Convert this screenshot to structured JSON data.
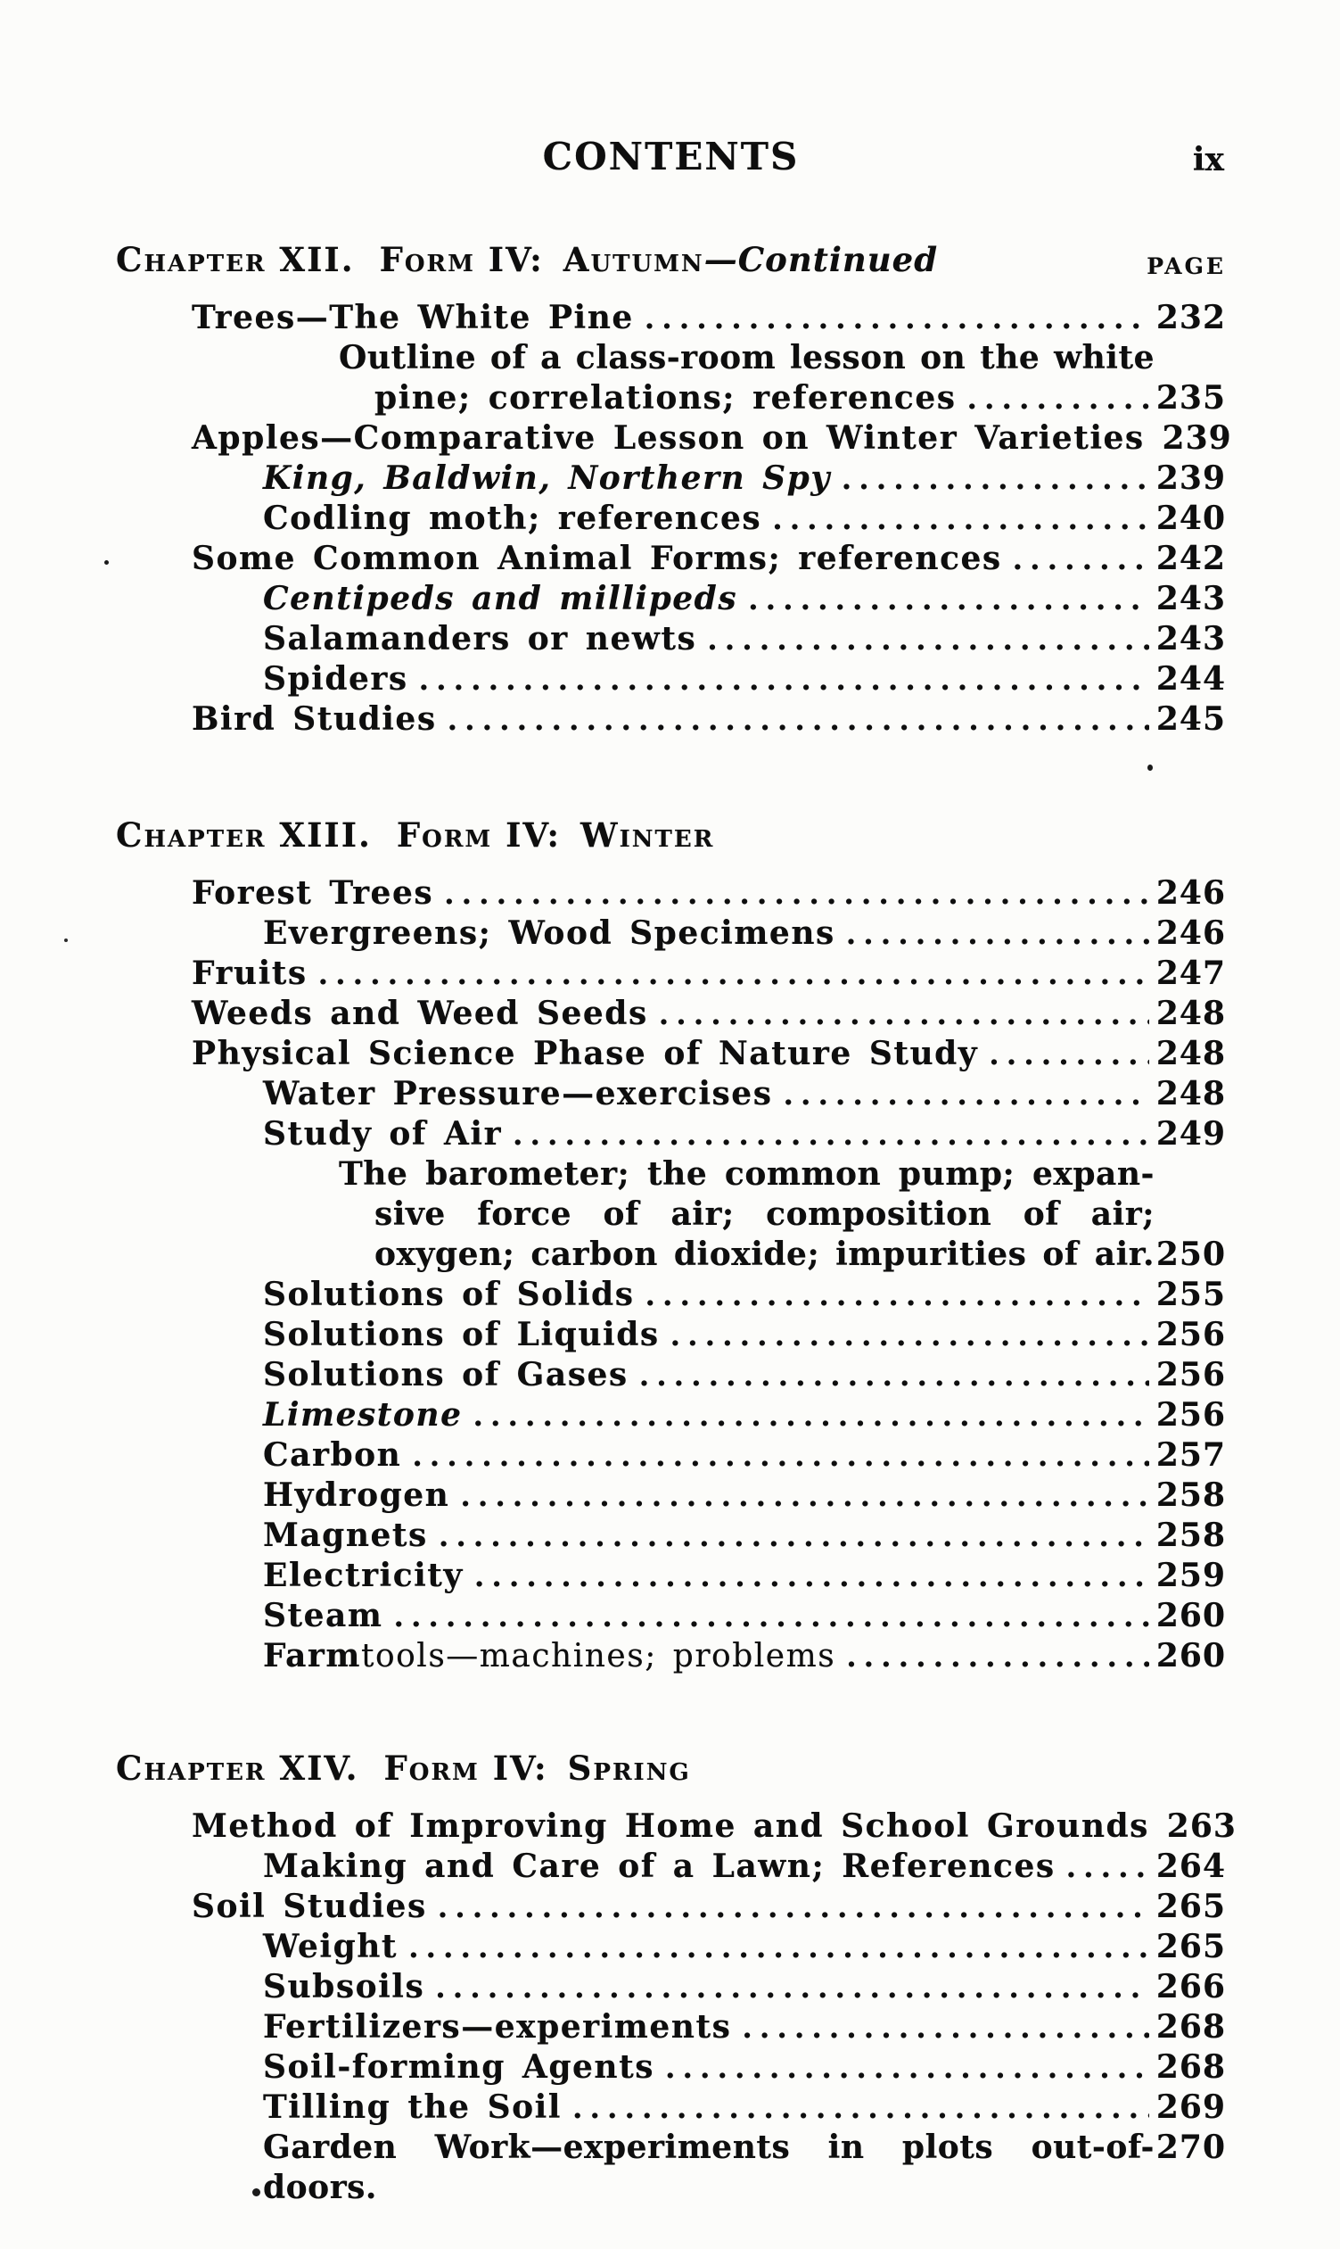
{
  "page": {
    "header_title": "CONTENTS",
    "page_number": "ix",
    "page_label": "PAGE"
  },
  "sections": [
    {
      "heading": {
        "chapter": "Chapter XII.",
        "form": "Form IV:",
        "season": "Autumn",
        "continued": "—Continued"
      },
      "show_page_label": true,
      "entries": [
        {
          "indent": 1,
          "text": "Trees—The White Pine",
          "page": "232",
          "dots": true
        },
        {
          "indent": 3,
          "text": "Outline of a class-room lesson on the white",
          "page": "",
          "dots": false,
          "justify": true
        },
        {
          "indent": 4,
          "text": "pine; correlations; references",
          "page": "235",
          "dots": true
        },
        {
          "indent": 1,
          "text": "Apples—Comparative Lesson on Winter Varieties",
          "page": "239",
          "dots": true
        },
        {
          "indent": 2,
          "text": "King, Baldwin, Northern Spy",
          "page": "239",
          "dots": true,
          "italic": true
        },
        {
          "indent": 2,
          "text": "Codling moth; references",
          "page": "240",
          "dots": true
        },
        {
          "indent": 1,
          "text": "Some Common Animal Forms; references",
          "page": "242",
          "dots": true,
          "speck_left": true
        },
        {
          "indent": 2,
          "text": "Centipeds and millipeds",
          "page": "243",
          "dots": true,
          "italic": true
        },
        {
          "indent": 2,
          "text": "Salamanders or newts",
          "page": "243",
          "dots": true
        },
        {
          "indent": 2,
          "text": "Spiders",
          "page": "244",
          "dots": true
        },
        {
          "indent": 1,
          "text": "Bird Studies",
          "page": "245",
          "dots": true
        }
      ]
    },
    {
      "heading": {
        "chapter": "Chapter XIII.",
        "form": "Form IV:",
        "season": "Winter",
        "continued": ""
      },
      "show_page_label": false,
      "heading_speck": true,
      "entries": [
        {
          "indent": 1,
          "text": "Forest Trees",
          "page": "246",
          "dots": true
        },
        {
          "indent": 2,
          "text": "Evergreens; Wood Specimens",
          "page": "246",
          "dots": true
        },
        {
          "indent": 1,
          "text": "Fruits",
          "page": "247",
          "dots": true
        },
        {
          "indent": 1,
          "text": "Weeds and Weed Seeds",
          "page": "248",
          "dots": true
        },
        {
          "indent": 1,
          "text": "Physical Science Phase of Nature Study",
          "page": "248",
          "dots": true
        },
        {
          "indent": 2,
          "text": "Water Pressure—exercises",
          "page": "248",
          "dots": true
        },
        {
          "indent": 2,
          "text": "Study of Air",
          "page": "249",
          "dots": true
        },
        {
          "indent": 3,
          "text": "The barometer; the common pump; expan-",
          "page": "",
          "dots": false,
          "justify": true
        },
        {
          "indent": 4,
          "text": "sive force of air; composition of air;",
          "page": "",
          "dots": false,
          "justify": true
        },
        {
          "indent": 4,
          "text": "oxygen; carbon dioxide; impurities of air.",
          "page": "250",
          "dots": false,
          "justify": true
        },
        {
          "indent": 2,
          "text": "Solutions of Solids",
          "page": "255",
          "dots": true
        },
        {
          "indent": 2,
          "text": "Solutions of Liquids",
          "page": "256",
          "dots": true
        },
        {
          "indent": 2,
          "text": "Solutions of Gases",
          "page": "256",
          "dots": true
        },
        {
          "indent": 2,
          "text": "Limestone",
          "page": "256",
          "dots": true,
          "italic": true
        },
        {
          "indent": 2,
          "text": "Carbon",
          "page": "257",
          "dots": true
        },
        {
          "indent": 2,
          "text": "Hydrogen",
          "page": "258",
          "dots": true
        },
        {
          "indent": 2,
          "text": "Magnets",
          "page": "258",
          "dots": true
        },
        {
          "indent": 2,
          "text": "Electricity",
          "page": "259",
          "dots": true
        },
        {
          "indent": 2,
          "text": "Steam",
          "page": "260",
          "dots": true
        },
        {
          "indent": 2,
          "text": "Farm",
          "text_light": " tools—machines; problems",
          "page": "260",
          "dots": true
        }
      ]
    },
    {
      "heading": {
        "chapter": "Chapter XIV.",
        "form": "Form IV:",
        "season": "Spring",
        "continued": ""
      },
      "show_page_label": false,
      "entries": [
        {
          "indent": 1,
          "text": "Method of Improving Home and School Grounds",
          "page": "263",
          "dots": true
        },
        {
          "indent": 2,
          "text": "Making and Care of a Lawn; References",
          "page": "264",
          "dots": true
        },
        {
          "indent": 1,
          "text": "Soil Studies",
          "page": "265",
          "dots": true
        },
        {
          "indent": 2,
          "text": "Weight",
          "page": "265",
          "dots": true
        },
        {
          "indent": 2,
          "text": "Subsoils",
          "page": "266",
          "dots": true
        },
        {
          "indent": 2,
          "text": "Fertilizers—experiments",
          "page": "268",
          "dots": true
        },
        {
          "indent": 2,
          "text": "Soil-forming Agents",
          "page": "268",
          "dots": true
        },
        {
          "indent": 2,
          "text": "Tilling the Soil",
          "page": "269",
          "dots": true
        },
        {
          "indent": 2,
          "text": "Garden Work—experiments in plots out-of-doors.",
          "page": "270",
          "dots": false,
          "justify": true
        }
      ]
    }
  ]
}
